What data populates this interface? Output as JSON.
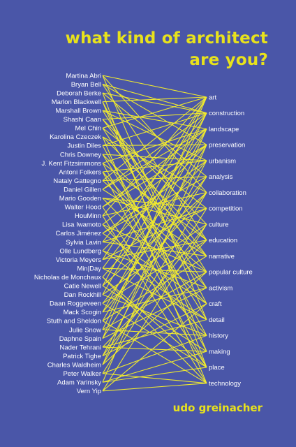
{
  "title_line1": "what kind of architect",
  "title_line2": "are you?",
  "author": "udo greinacher",
  "names": [
    "Martina Abri",
    "Bryan Bell",
    "Deborah Berke",
    "Marlon Blackwell",
    "Marshall Brown",
    "Shashi Caan",
    "Mel Chin",
    "Karolina Czeczek",
    "Justin Diles",
    "Chris Downey",
    "J. Kent Fitzsimmons",
    "Antoni Folkers",
    "Nataly Gattegno",
    "Daniel Gillen",
    "Mario Gooden",
    "Walter Hood",
    "HouMinn",
    "Lisa Iwamoto",
    "Carlos Jiménez",
    "Sylvia Lavin",
    "Olle Lundberg",
    "Victoria Meyers",
    "Min|Day",
    "Nicholas de Monchaux",
    "Catie Newell",
    "Dan Rockhill",
    "Daan Roggeveen",
    "Mack Scogin",
    "Stuth and Sheldon",
    "Julie Snow",
    "Daphne Spain",
    "Nader Tehrani",
    "Patrick Tighe",
    "Charles Waldheim",
    "Peter Walker",
    "Adam Yarinsky",
    "Vern Yip"
  ],
  "topics": [
    "art",
    "construction",
    "landscape",
    "preservation",
    "urbanism",
    "analysis",
    "collaboration",
    "competition",
    "culture",
    "education",
    "narrative",
    "popular culture",
    "activism",
    "craft",
    "detail",
    "history",
    "making",
    "place",
    "technology"
  ],
  "links": [
    [
      0,
      0
    ],
    [
      0,
      6
    ],
    [
      0,
      14
    ],
    [
      1,
      1
    ],
    [
      1,
      3
    ],
    [
      1,
      9
    ],
    [
      2,
      1
    ],
    [
      2,
      17
    ],
    [
      2,
      5
    ],
    [
      3,
      0
    ],
    [
      3,
      16
    ],
    [
      3,
      13
    ],
    [
      4,
      4
    ],
    [
      4,
      2
    ],
    [
      4,
      11
    ],
    [
      5,
      8
    ],
    [
      5,
      10
    ],
    [
      5,
      1
    ],
    [
      6,
      0
    ],
    [
      6,
      12
    ],
    [
      6,
      7
    ],
    [
      7,
      9
    ],
    [
      7,
      6
    ],
    [
      7,
      18
    ],
    [
      8,
      3
    ],
    [
      8,
      15
    ],
    [
      8,
      1
    ],
    [
      9,
      4
    ],
    [
      9,
      14
    ],
    [
      9,
      10
    ],
    [
      10,
      2
    ],
    [
      10,
      16
    ],
    [
      10,
      9
    ],
    [
      11,
      12
    ],
    [
      11,
      4
    ],
    [
      11,
      17
    ],
    [
      12,
      5
    ],
    [
      12,
      0
    ],
    [
      12,
      11
    ],
    [
      13,
      1
    ],
    [
      13,
      10
    ],
    [
      13,
      2
    ],
    [
      14,
      8
    ],
    [
      14,
      13
    ],
    [
      14,
      7
    ],
    [
      15,
      3
    ],
    [
      15,
      2
    ],
    [
      15,
      17
    ],
    [
      16,
      0
    ],
    [
      16,
      18
    ],
    [
      16,
      6
    ],
    [
      17,
      11
    ],
    [
      17,
      3
    ],
    [
      17,
      15
    ],
    [
      18,
      13
    ],
    [
      18,
      4
    ],
    [
      18,
      5
    ],
    [
      19,
      10
    ],
    [
      19,
      7
    ],
    [
      19,
      1
    ],
    [
      20,
      12
    ],
    [
      20,
      3
    ],
    [
      20,
      14
    ],
    [
      21,
      7
    ],
    [
      21,
      9
    ],
    [
      21,
      0
    ],
    [
      22,
      14
    ],
    [
      22,
      11
    ],
    [
      22,
      2
    ],
    [
      23,
      4
    ],
    [
      23,
      17
    ],
    [
      23,
      18
    ],
    [
      24,
      6
    ],
    [
      24,
      0
    ],
    [
      24,
      16
    ],
    [
      25,
      15
    ],
    [
      25,
      1
    ],
    [
      25,
      8
    ],
    [
      26,
      5
    ],
    [
      26,
      9
    ],
    [
      26,
      17
    ],
    [
      27,
      2
    ],
    [
      27,
      6
    ],
    [
      27,
      12
    ],
    [
      28,
      18
    ],
    [
      28,
      3
    ],
    [
      28,
      10
    ],
    [
      29,
      11
    ],
    [
      29,
      1
    ],
    [
      29,
      15
    ],
    [
      30,
      0
    ],
    [
      30,
      12
    ],
    [
      30,
      5
    ],
    [
      31,
      14
    ],
    [
      31,
      9
    ],
    [
      31,
      16
    ],
    [
      32,
      8
    ],
    [
      32,
      13
    ],
    [
      32,
      4
    ],
    [
      33,
      6
    ],
    [
      33,
      2
    ],
    [
      33,
      11
    ],
    [
      34,
      7
    ],
    [
      34,
      15
    ],
    [
      34,
      18
    ],
    [
      35,
      17
    ],
    [
      35,
      16
    ],
    [
      35,
      3
    ],
    [
      36,
      8
    ],
    [
      36,
      13
    ],
    [
      36,
      18
    ]
  ],
  "colors": {
    "background": "#4a56a8",
    "title": "#e8e21c",
    "line": "#f0ea2e",
    "label": "#ffffff"
  }
}
